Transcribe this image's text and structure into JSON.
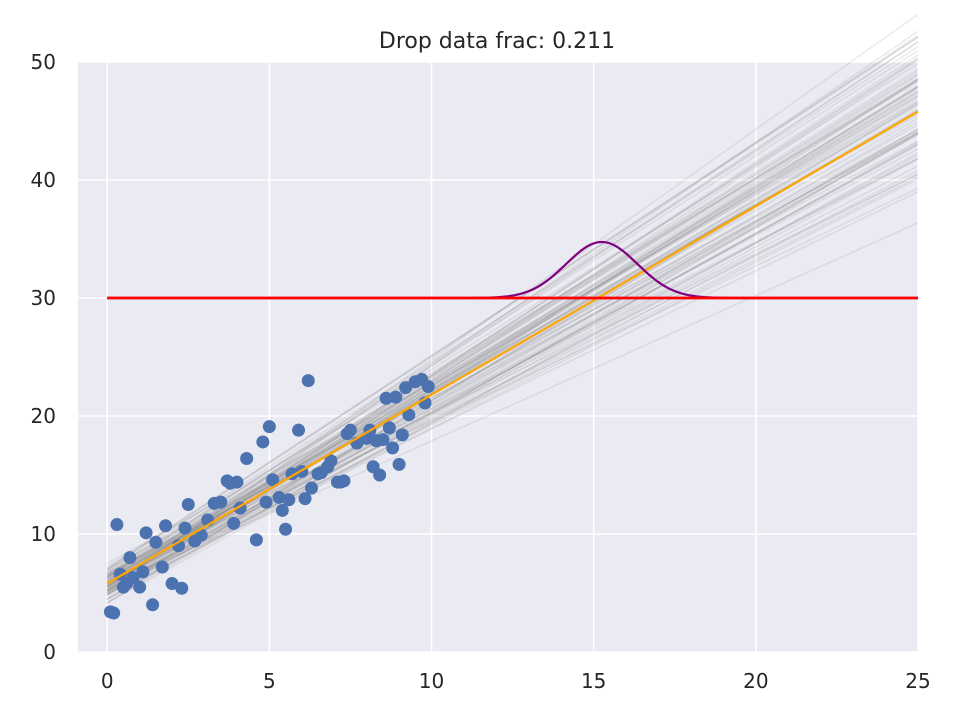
{
  "chart_data": {
    "type": "scatter",
    "title": "Drop data frac: 0.211",
    "xlabel": "",
    "ylabel": "",
    "xlim": [
      -0.9,
      25
    ],
    "ylim": [
      0,
      50
    ],
    "x_ticks": [
      0,
      5,
      10,
      15,
      20,
      25
    ],
    "y_ticks": [
      0,
      10,
      20,
      30,
      40,
      50
    ],
    "grid": true,
    "colors": {
      "background": "#eaeaf2",
      "grid": "#ffffff",
      "points": "#4c72b0",
      "fit_line": "#ffa500",
      "samples": "#808080",
      "threshold": "#ff0000",
      "density": "#800080"
    },
    "scatter": {
      "x": [
        0.1,
        0.2,
        0.3,
        0.4,
        0.5,
        0.6,
        0.7,
        0.8,
        1.0,
        1.1,
        1.2,
        1.4,
        1.5,
        1.7,
        1.8,
        2.0,
        2.2,
        2.3,
        2.4,
        2.5,
        2.7,
        2.9,
        3.1,
        3.3,
        3.5,
        3.7,
        3.8,
        3.9,
        4.0,
        4.1,
        4.3,
        4.6,
        4.8,
        4.9,
        5.0,
        5.1,
        5.3,
        5.4,
        5.5,
        5.6,
        5.7,
        5.9,
        6.0,
        6.1,
        6.2,
        6.3,
        6.5,
        6.6,
        6.8,
        6.9,
        7.1,
        7.2,
        7.3,
        7.4,
        7.5,
        7.7,
        8.0,
        8.1,
        8.2,
        8.3,
        8.4,
        8.5,
        8.6,
        8.7,
        8.8,
        8.9,
        9.0,
        9.1,
        9.2,
        9.3,
        9.5,
        9.7,
        9.8,
        9.9
      ],
      "y": [
        3.4,
        3.3,
        10.8,
        6.6,
        5.5,
        5.8,
        8.0,
        6.3,
        5.5,
        6.8,
        10.1,
        4.0,
        9.3,
        7.2,
        10.7,
        5.8,
        9.0,
        5.4,
        10.5,
        12.5,
        9.4,
        9.9,
        11.2,
        12.6,
        12.7,
        14.5,
        14.3,
        10.9,
        14.4,
        12.2,
        16.4,
        9.5,
        17.8,
        12.7,
        19.1,
        14.6,
        13.1,
        12.0,
        10.4,
        12.9,
        15.1,
        18.8,
        15.3,
        13.0,
        23.0,
        13.9,
        15.1,
        15.2,
        15.7,
        16.2,
        14.4,
        14.4,
        14.5,
        18.5,
        18.8,
        17.7,
        18.1,
        18.8,
        15.7,
        17.9,
        15.0,
        18.0,
        21.5,
        19.0,
        17.3,
        21.6,
        15.9,
        18.4,
        22.4,
        20.1,
        22.9,
        23.1,
        21.1,
        22.5
      ]
    },
    "fit_line": {
      "intercept": 5.8,
      "slope": 1.6
    },
    "sample_lines": {
      "count": 80,
      "intercept_mean": 5.8,
      "intercept_sd": 0.8,
      "slope_mean": 1.6,
      "slope_sd": 0.14,
      "opacity": 0.15
    },
    "threshold_line": {
      "y": 30,
      "x_start": 0,
      "x_end": 25
    },
    "density_curve": {
      "baseline": 30,
      "mean": 15.25,
      "sd": 1.1,
      "height": 4.75
    }
  }
}
